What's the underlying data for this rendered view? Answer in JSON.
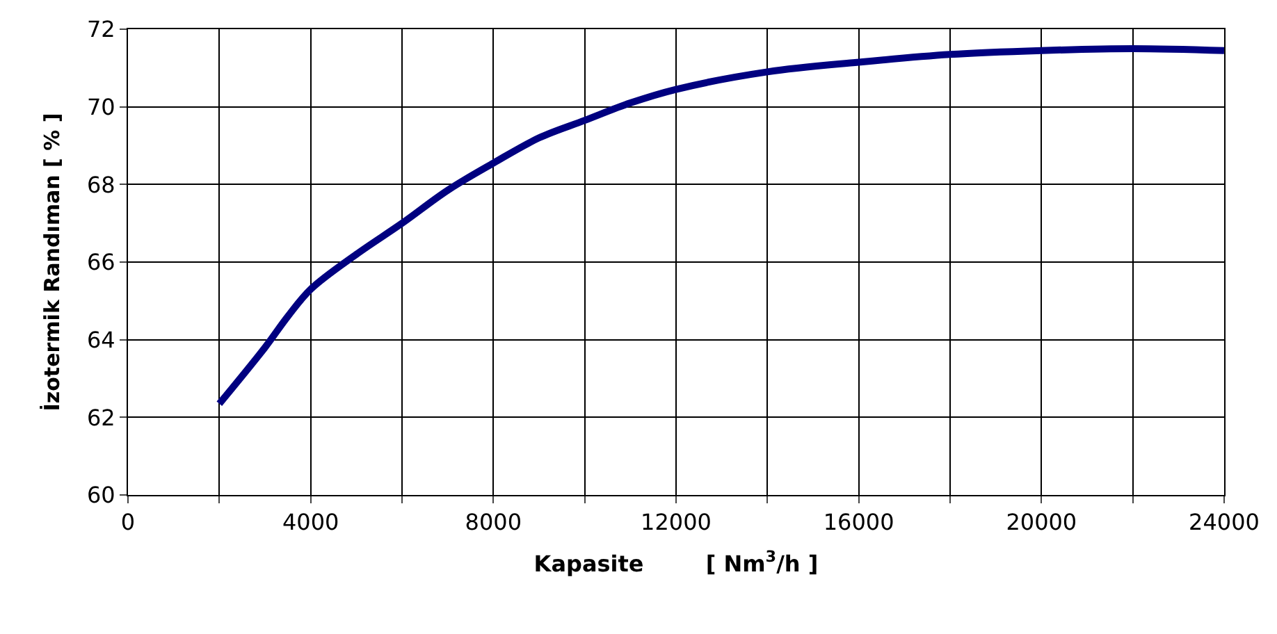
{
  "chart_data": {
    "type": "line",
    "xlabel": "Kapasite        [ Nm$^{3}$/h ]",
    "ylabel": "İzotermik Randıman [ % ]",
    "x": [
      2000,
      3000,
      3500,
      4000,
      5000,
      6000,
      7000,
      8000,
      9000,
      10000,
      11000,
      12000,
      14000,
      16000,
      18000,
      20000,
      22000,
      24000
    ],
    "series": [
      {
        "color": "#000080",
        "values": [
          62.35,
          63.8,
          64.6,
          65.3,
          66.2,
          67.0,
          67.85,
          68.55,
          69.2,
          69.65,
          70.1,
          70.45,
          70.9,
          71.15,
          71.35,
          71.45,
          71.5,
          71.45
        ]
      }
    ],
    "xlim": [
      0,
      24000
    ],
    "xticks": [
      0,
      {
        "value": 2000,
        "label": null
      },
      4000,
      {
        "value": 6000,
        "label": null
      },
      8000,
      {
        "value": 10000,
        "label": null
      },
      12000,
      {
        "value": 14000,
        "label": null
      },
      16000,
      {
        "value": 18000,
        "label": null
      },
      20000,
      {
        "value": 22000,
        "label": null
      },
      24000
    ],
    "ylim": [
      60,
      72
    ],
    "yticks": [
      60,
      62,
      64,
      66,
      68,
      70,
      72
    ],
    "grid": true,
    "legend": false,
    "marker": "none",
    "line_style": "solid"
  }
}
